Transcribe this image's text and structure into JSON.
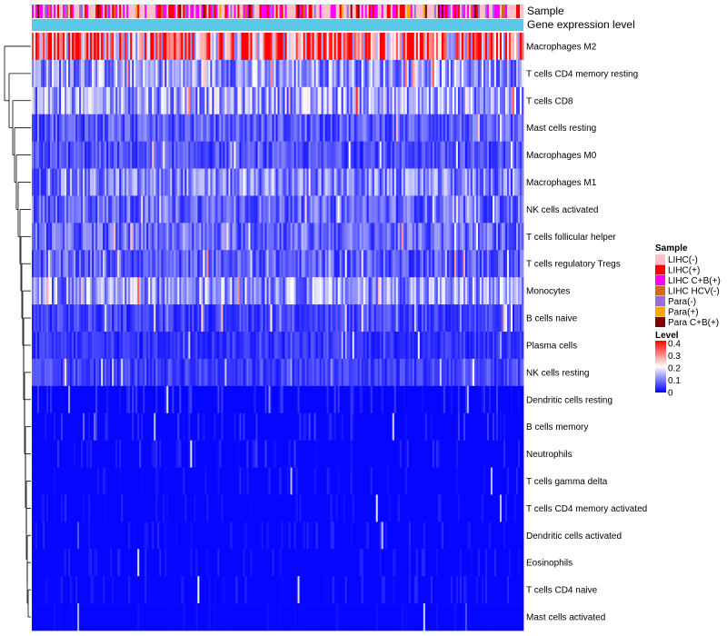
{
  "chart_data": {
    "type": "heatmap",
    "title": "",
    "annotation_rows": [
      "Sample",
      "Gene expression level"
    ],
    "rows": [
      "Macrophages M2",
      "T cells CD4 memory resting",
      "T cells CD8",
      "Mast cells resting",
      "Macrophages M0",
      "Macrophages M1",
      "NK cells activated",
      "T cells follicular helper",
      "T cells regulatory  Tregs",
      "Monocytes",
      "B cells naive",
      "Plasma cells",
      "NK cells resting",
      "Dendritic cells resting",
      "B cells memory",
      "Neutrophils",
      "T cells gamma delta",
      "T cells CD4 memory activated",
      "Dendritic cells activated",
      "Eosinophils",
      "T cells CD4 naive",
      "Mast cells activated"
    ],
    "row_mean_level": [
      0.3,
      0.12,
      0.13,
      0.07,
      0.06,
      0.1,
      0.08,
      0.08,
      0.07,
      0.12,
      0.05,
      0.04,
      0.05,
      0.03,
      0.03,
      0.03,
      0.02,
      0.02,
      0.02,
      0.02,
      0.02,
      0.01
    ],
    "n_samples": 270,
    "legend_sample": {
      "title": "Sample",
      "entries": [
        {
          "label": "LIHC(-)",
          "color": "#ffc0cb"
        },
        {
          "label": "LIHC(+)",
          "color": "#ff0000"
        },
        {
          "label": "LIHC C+B(+)",
          "color": "#ff00ff"
        },
        {
          "label": "LIHC HCV(-)",
          "color": "#d2691e"
        },
        {
          "label": "Para(-)",
          "color": "#9370db"
        },
        {
          "label": "Para(+)",
          "color": "#ffa500"
        },
        {
          "label": "Para C+B(+)",
          "color": "#800000"
        }
      ]
    },
    "legend_level": {
      "title": "Level",
      "ticks": [
        "0.4",
        "0.3",
        "0.2",
        "0.1",
        "0"
      ],
      "range": [
        0,
        0.4
      ],
      "colors": {
        "low": "#0000ff",
        "mid": "#ffffff",
        "high": "#ff0000"
      }
    },
    "gene_expression_color": "#5bc8e8"
  }
}
